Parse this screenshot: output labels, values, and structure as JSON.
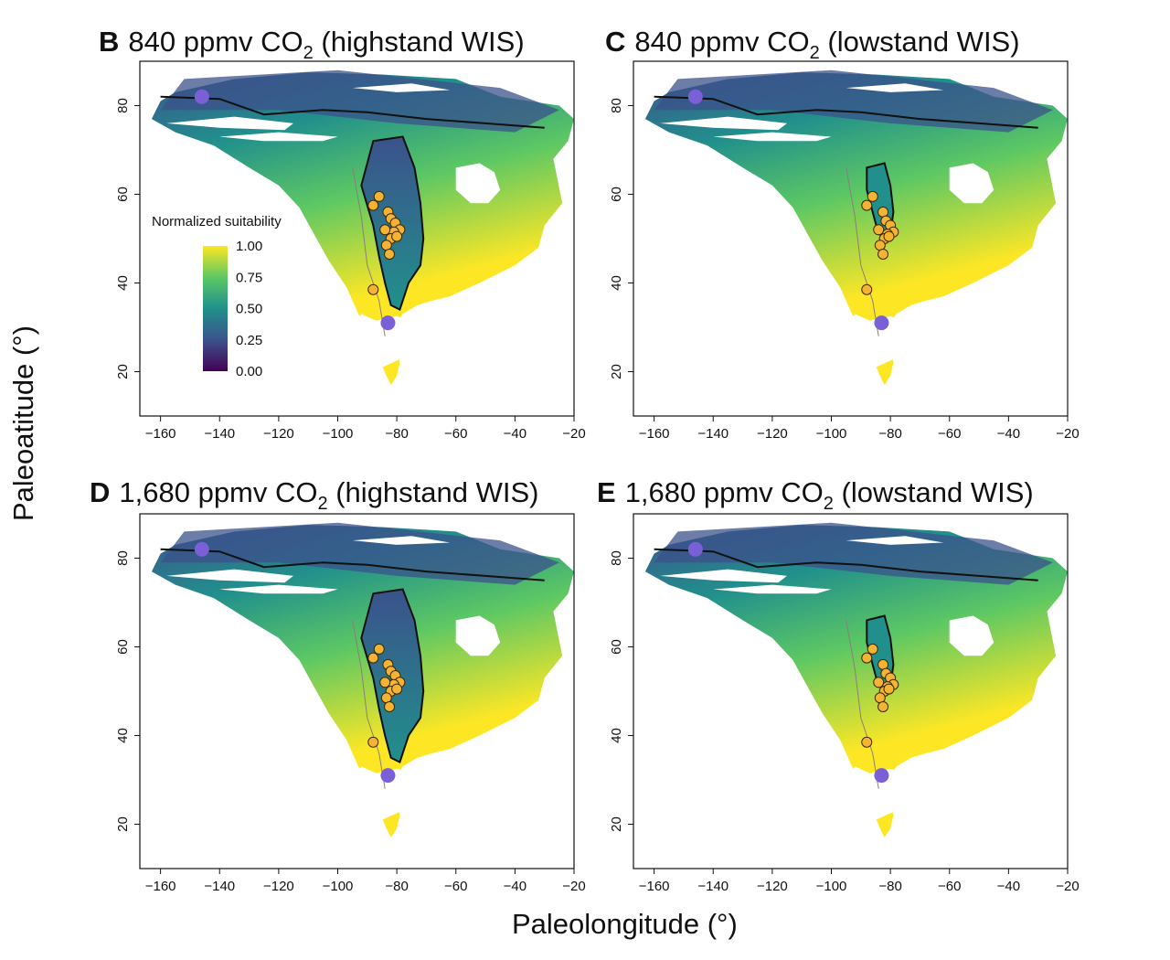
{
  "figure": {
    "xlabel": "Paleolongitude (°)",
    "ylabel": "Paleoatitude (°)"
  },
  "colors": {
    "viridis": [
      "#440154",
      "#3b528b",
      "#21908c",
      "#5dc863",
      "#fde725"
    ],
    "site": "#f5b335",
    "site_edge": "#3a2a00",
    "reference": "#7b5fd6",
    "contour": "#111111",
    "border": "#8a7f78",
    "frame": "#111111"
  },
  "legend": {
    "title": "Normalized suitability",
    "ticks": [
      "1.00",
      "0.75",
      "0.50",
      "0.25",
      "0.00"
    ]
  },
  "chart_data": [
    {
      "type": "heatmap",
      "panel": "B",
      "title": "840 ppmv CO",
      "title_sub": "2",
      "title_suffix": " (highstand WIS)",
      "xlim": [
        -167,
        -20
      ],
      "ylim": [
        10,
        90
      ],
      "xticks": [
        -160,
        -140,
        -120,
        -100,
        -80,
        -60,
        -40,
        -20
      ],
      "xtick_labels": [
        "−160",
        "−140",
        "−120",
        "−100",
        "−80",
        "−60",
        "−40",
        "−20"
      ],
      "yticks": [
        20,
        40,
        60,
        80
      ],
      "yticks_labels": [
        "20",
        "40",
        "60",
        "80"
      ],
      "legend": true,
      "reference_points": [
        {
          "x": -146,
          "y": 82
        },
        {
          "x": -83,
          "y": 31
        }
      ],
      "sites": [
        {
          "x": -86,
          "y": 59.5
        },
        {
          "x": -88,
          "y": 57.5
        },
        {
          "x": -83,
          "y": 56
        },
        {
          "x": -82,
          "y": 54.5
        },
        {
          "x": -80.5,
          "y": 53.5
        },
        {
          "x": -79,
          "y": 52
        },
        {
          "x": -81,
          "y": 51.5
        },
        {
          "x": -84,
          "y": 52
        },
        {
          "x": -82,
          "y": 50
        },
        {
          "x": -80,
          "y": 50.5
        },
        {
          "x": -83.5,
          "y": 48.5
        },
        {
          "x": -82.5,
          "y": 46.5
        },
        {
          "x": -88,
          "y": 38.5
        }
      ]
    },
    {
      "type": "heatmap",
      "panel": "C",
      "title": "840 ppmv CO",
      "title_sub": "2",
      "title_suffix": " (lowstand WIS)",
      "xlim": [
        -167,
        -20
      ],
      "ylim": [
        10,
        90
      ],
      "xticks": [
        -160,
        -140,
        -120,
        -100,
        -80,
        -60,
        -40,
        -20
      ],
      "xtick_labels": [
        "−160",
        "−140",
        "−120",
        "−100",
        "−80",
        "−60",
        "−40",
        "−20"
      ],
      "yticks": [
        20,
        40,
        60,
        80
      ],
      "yticks_labels": [
        "20",
        "40",
        "60",
        "80"
      ],
      "legend": false,
      "reference_points": [
        {
          "x": -146,
          "y": 82
        },
        {
          "x": -83,
          "y": 31
        }
      ],
      "sites": [
        {
          "x": -86,
          "y": 59.5
        },
        {
          "x": -88,
          "y": 57.5
        },
        {
          "x": -82.5,
          "y": 56
        },
        {
          "x": -81.5,
          "y": 54
        },
        {
          "x": -80,
          "y": 53
        },
        {
          "x": -79,
          "y": 51.5
        },
        {
          "x": -81,
          "y": 51
        },
        {
          "x": -84,
          "y": 52
        },
        {
          "x": -82,
          "y": 50
        },
        {
          "x": -80.5,
          "y": 50.5
        },
        {
          "x": -83.5,
          "y": 48.5
        },
        {
          "x": -82.5,
          "y": 46.5
        },
        {
          "x": -88,
          "y": 38.5
        }
      ]
    },
    {
      "type": "heatmap",
      "panel": "D",
      "title": "1,680 ppmv CO",
      "title_sub": "2",
      "title_suffix": " (highstand WIS)",
      "xlim": [
        -167,
        -20
      ],
      "ylim": [
        10,
        90
      ],
      "xticks": [
        -160,
        -140,
        -120,
        -100,
        -80,
        -60,
        -40,
        -20
      ],
      "xtick_labels": [
        "−160",
        "−140",
        "−120",
        "−100",
        "−80",
        "−60",
        "−40",
        "−20"
      ],
      "yticks": [
        20,
        40,
        60,
        80
      ],
      "yticks_labels": [
        "20",
        "40",
        "60",
        "80"
      ],
      "legend": false,
      "reference_points": [
        {
          "x": -146,
          "y": 82
        },
        {
          "x": -83,
          "y": 31
        }
      ],
      "sites": [
        {
          "x": -86,
          "y": 59.5
        },
        {
          "x": -88,
          "y": 57.5
        },
        {
          "x": -83,
          "y": 56
        },
        {
          "x": -82,
          "y": 54.5
        },
        {
          "x": -80.5,
          "y": 53.5
        },
        {
          "x": -79,
          "y": 52
        },
        {
          "x": -81,
          "y": 51.5
        },
        {
          "x": -84,
          "y": 52
        },
        {
          "x": -82,
          "y": 50
        },
        {
          "x": -80,
          "y": 50.5
        },
        {
          "x": -83.5,
          "y": 48.5
        },
        {
          "x": -82.5,
          "y": 46.5
        },
        {
          "x": -88,
          "y": 38.5
        }
      ]
    },
    {
      "type": "heatmap",
      "panel": "E",
      "title": "1,680 ppmv CO",
      "title_sub": "2",
      "title_suffix": " (lowstand WIS)",
      "xlim": [
        -167,
        -20
      ],
      "ylim": [
        10,
        90
      ],
      "xticks": [
        -160,
        -140,
        -120,
        -100,
        -80,
        -60,
        -40,
        -20
      ],
      "xtick_labels": [
        "−160",
        "−140",
        "−120",
        "−100",
        "−80",
        "−60",
        "−40",
        "−20"
      ],
      "yticks": [
        20,
        40,
        60,
        80
      ],
      "yticks_labels": [
        "20",
        "40",
        "60",
        "80"
      ],
      "legend": false,
      "reference_points": [
        {
          "x": -146,
          "y": 82
        },
        {
          "x": -83,
          "y": 31
        }
      ],
      "sites": [
        {
          "x": -86,
          "y": 59.5
        },
        {
          "x": -88,
          "y": 57.5
        },
        {
          "x": -82.5,
          "y": 56
        },
        {
          "x": -81.5,
          "y": 54
        },
        {
          "x": -80,
          "y": 53
        },
        {
          "x": -79,
          "y": 51.5
        },
        {
          "x": -81,
          "y": 51
        },
        {
          "x": -84,
          "y": 52
        },
        {
          "x": -82,
          "y": 50
        },
        {
          "x": -80.5,
          "y": 50.5
        },
        {
          "x": -83.5,
          "y": 48.5
        },
        {
          "x": -82.5,
          "y": 46.5
        },
        {
          "x": -88,
          "y": 38.5
        }
      ]
    }
  ]
}
